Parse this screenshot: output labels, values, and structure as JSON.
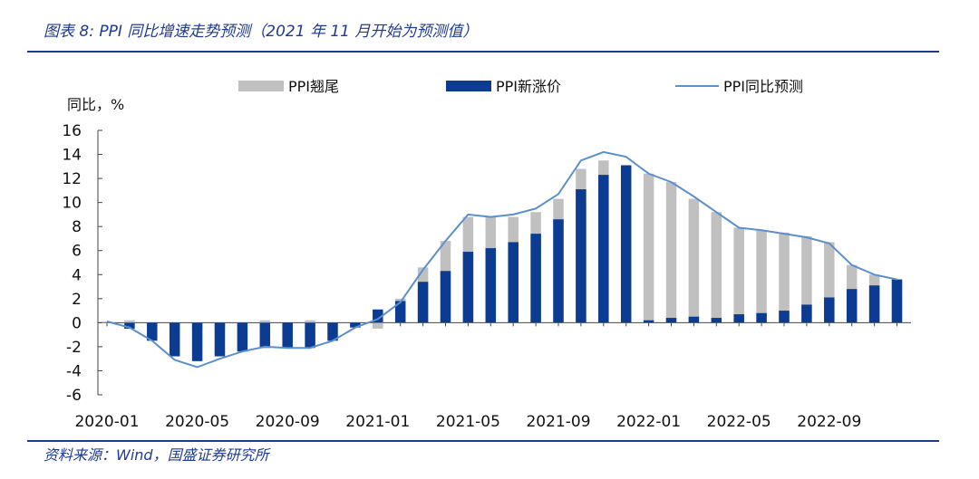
{
  "title": "图表 8: PPI 同比增速走势预测（2021 年 11 月开始为预测值）",
  "source": "资料来源：Wind，国盛证券研究所",
  "colors": {
    "gray": "#c0c0c0",
    "navy": "#0c3c91",
    "line": "#5b8fcf",
    "accent": "#1f3a93"
  },
  "chart_data": {
    "type": "bar",
    "ylabel": "同比，%",
    "ylim": [
      -6,
      16
    ],
    "yticks": [
      16,
      14,
      12,
      10,
      8,
      6,
      4,
      2,
      0,
      -2,
      -4,
      -6
    ],
    "x_tick_labels": [
      "2020-01",
      "2020-05",
      "2020-09",
      "2021-01",
      "2021-05",
      "2021-09",
      "2022-01",
      "2022-05",
      "2022-09"
    ],
    "x_tick_index": [
      0,
      4,
      8,
      12,
      16,
      20,
      24,
      28,
      32
    ],
    "legend": [
      "PPI翘尾",
      "PPI新涨价",
      "PPI同比预测"
    ],
    "months": [
      "2020-01",
      "2020-02",
      "2020-03",
      "2020-04",
      "2020-05",
      "2020-06",
      "2020-07",
      "2020-08",
      "2020-09",
      "2020-10",
      "2020-11",
      "2020-12",
      "2021-01",
      "2021-02",
      "2021-03",
      "2021-04",
      "2021-05",
      "2021-06",
      "2021-07",
      "2021-08",
      "2021-09",
      "2021-10",
      "2021-11",
      "2021-12",
      "2022-01",
      "2022-02",
      "2022-03",
      "2022-04",
      "2022-05",
      "2022-06",
      "2022-07",
      "2022-08",
      "2022-09",
      "2022-10",
      "2022-11",
      "2022-12"
    ],
    "series": [
      {
        "name": "PPI翘尾",
        "values": [
          0.1,
          0.2,
          -0.1,
          -0.3,
          -0.5,
          -0.5,
          -0.4,
          0.2,
          0.0,
          0.2,
          -0.1,
          -0.1,
          -0.5,
          2.0,
          4.6,
          6.8,
          8.8,
          8.8,
          8.8,
          9.2,
          10.3,
          12.8,
          13.5,
          13.0,
          12.4,
          11.7,
          10.3,
          9.2,
          7.9,
          7.7,
          7.5,
          7.2,
          6.7,
          4.8,
          4.0,
          3.6
        ]
      },
      {
        "name": "PPI新涨价",
        "values": [
          0.0,
          -0.5,
          -1.5,
          -2.8,
          -3.2,
          -2.8,
          -2.4,
          -2.1,
          -2.1,
          -2.1,
          -1.5,
          -0.4,
          1.1,
          1.8,
          3.4,
          4.3,
          5.9,
          6.2,
          6.7,
          7.4,
          8.6,
          11.1,
          12.3,
          13.1,
          0.2,
          0.4,
          0.5,
          0.4,
          0.7,
          0.8,
          1.0,
          1.5,
          2.1,
          2.8,
          3.1,
          3.6
        ]
      },
      {
        "name": "PPI同比预测",
        "values": [
          0.1,
          -0.4,
          -1.5,
          -3.1,
          -3.7,
          -3.0,
          -2.4,
          -2.0,
          -2.1,
          -2.1,
          -1.5,
          -0.4,
          0.3,
          1.7,
          4.4,
          6.8,
          9.0,
          8.8,
          9.0,
          9.5,
          10.7,
          13.5,
          14.2,
          13.8,
          12.4,
          11.7,
          10.5,
          9.2,
          7.9,
          7.7,
          7.4,
          7.1,
          6.6,
          4.8,
          4.0,
          3.6
        ]
      }
    ],
    "grid": false,
    "legend_position": "top"
  }
}
